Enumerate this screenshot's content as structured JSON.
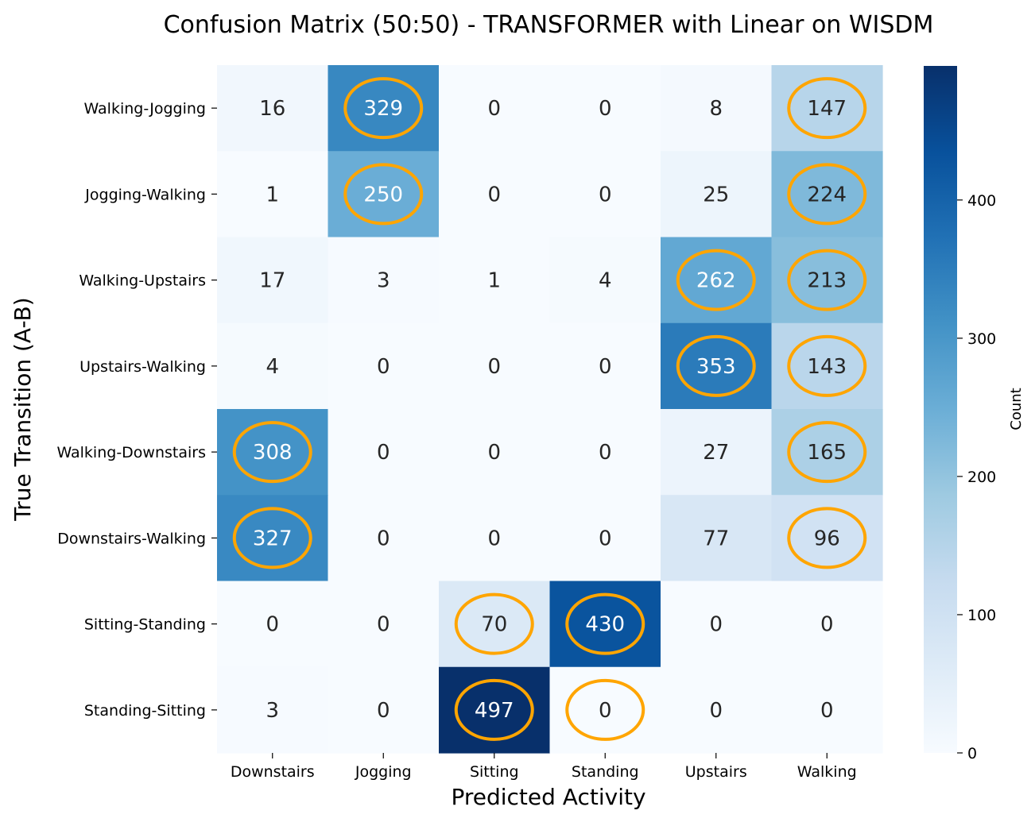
{
  "chart_data": {
    "type": "heatmap",
    "title": "Confusion Matrix (50:50) - TRANSFORMER with Linear on WISDM",
    "xlabel": "Predicted Activity",
    "ylabel": "True Transition (A-B)",
    "x_categories": [
      "Downstairs",
      "Jogging",
      "Sitting",
      "Standing",
      "Upstairs",
      "Walking"
    ],
    "y_categories": [
      "Walking-Jogging",
      "Jogging-Walking",
      "Walking-Upstairs",
      "Upstairs-Walking",
      "Walking-Downstairs",
      "Downstairs-Walking",
      "Sitting-Standing",
      "Standing-Sitting"
    ],
    "values": [
      [
        16,
        329,
        0,
        0,
        8,
        147
      ],
      [
        1,
        250,
        0,
        0,
        25,
        224
      ],
      [
        17,
        3,
        1,
        4,
        262,
        213
      ],
      [
        4,
        0,
        0,
        0,
        353,
        143
      ],
      [
        308,
        0,
        0,
        0,
        27,
        165
      ],
      [
        327,
        0,
        0,
        0,
        77,
        96
      ],
      [
        0,
        0,
        70,
        430,
        0,
        0
      ],
      [
        3,
        0,
        497,
        0,
        0,
        0
      ]
    ],
    "highlighted_cells": [
      [
        0,
        1
      ],
      [
        0,
        5
      ],
      [
        1,
        1
      ],
      [
        1,
        5
      ],
      [
        2,
        4
      ],
      [
        2,
        5
      ],
      [
        3,
        4
      ],
      [
        3,
        5
      ],
      [
        4,
        0
      ],
      [
        4,
        5
      ],
      [
        5,
        0
      ],
      [
        5,
        5
      ],
      [
        6,
        2
      ],
      [
        6,
        3
      ],
      [
        7,
        2
      ],
      [
        7,
        3
      ]
    ],
    "highlight_color": "#FFA500",
    "colormap": "Blues",
    "colorbar": {
      "label": "Count",
      "min": 0,
      "max": 497,
      "ticks": [
        0,
        100,
        200,
        300,
        400
      ]
    }
  }
}
